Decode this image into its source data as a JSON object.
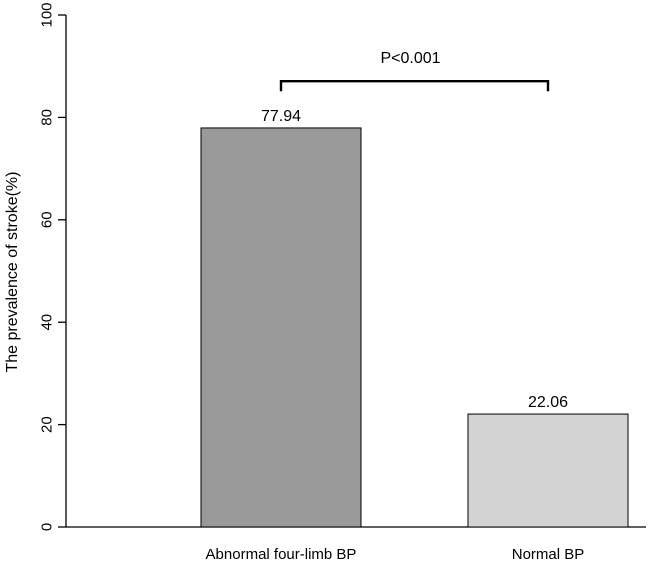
{
  "chart_data": {
    "type": "bar",
    "title": "",
    "xlabel": "",
    "ylabel": "The prevalence of stroke(%)",
    "ylim": [
      0,
      100
    ],
    "yticks": [
      0,
      20,
      40,
      60,
      80,
      100
    ],
    "categories": [
      "Abnormal four-limb BP",
      "Normal BP"
    ],
    "values": [
      77.94,
      22.06
    ],
    "data_labels": [
      "77.94",
      "22.06"
    ],
    "bar_colors": [
      "#999999",
      "#d3d3d3"
    ],
    "annotation": {
      "text": "P<0.001",
      "between": [
        0,
        1
      ],
      "y": 90
    },
    "grid": false,
    "legend": "none"
  }
}
